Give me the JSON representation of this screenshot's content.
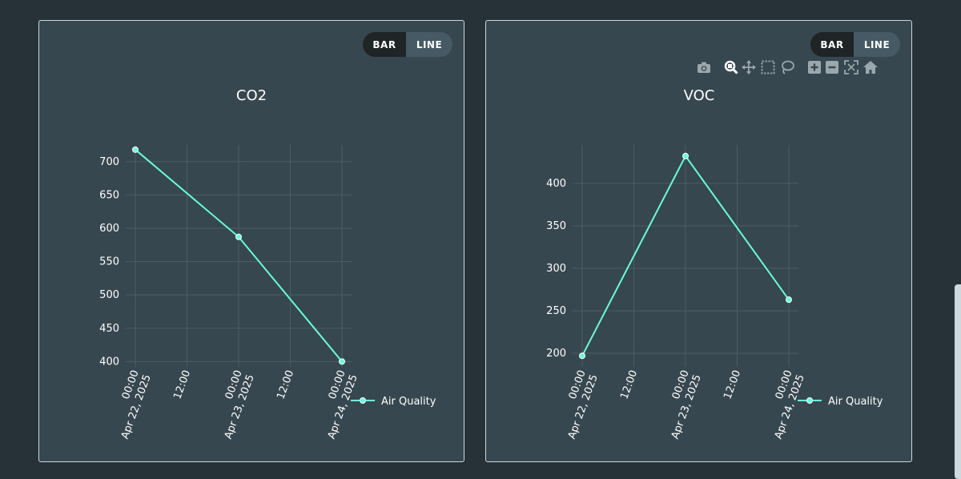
{
  "colors": {
    "page_bg": "#263238",
    "panel_bg": "#37474f",
    "panel_border": "#cfd8dc",
    "series": "#64ffda",
    "grid": "#4c5c63",
    "text": "#ffffff",
    "toggle_off": "#1f2426",
    "toggle_on": "#455a64"
  },
  "toggle": {
    "bar_label": "BAR",
    "line_label": "LINE",
    "active": "line"
  },
  "modebar_icons": [
    "camera-icon",
    "zoom-icon",
    "pan-icon",
    "box-select-icon",
    "lasso-select-icon",
    "zoom-in-icon",
    "zoom-out-icon",
    "autoscale-icon",
    "reset-axes-icon"
  ],
  "chart_data": [
    {
      "type": "line",
      "title": "CO2",
      "series": [
        {
          "name": "Air Quality",
          "values": [
            718,
            587,
            400
          ]
        }
      ],
      "x": [
        "Apr 22, 2025 00:00",
        "Apr 23, 2025 00:00",
        "Apr 24, 2025 00:00"
      ],
      "x_ticks": [
        {
          "time": "00:00",
          "date": "Apr 22, 2025"
        },
        {
          "time": "12:00",
          "date": ""
        },
        {
          "time": "00:00",
          "date": "Apr 23, 2025"
        },
        {
          "time": "12:00",
          "date": ""
        },
        {
          "time": "00:00",
          "date": "Apr 24, 2025"
        }
      ],
      "y_ticks": [
        400,
        450,
        500,
        550,
        600,
        650,
        700
      ],
      "ylim": [
        392,
        725
      ],
      "legend": "right"
    },
    {
      "type": "line",
      "title": "VOC",
      "series": [
        {
          "name": "Air Quality",
          "values": [
            197,
            432,
            263
          ]
        }
      ],
      "x": [
        "Apr 22, 2025 00:00",
        "Apr 23, 2025 00:00",
        "Apr 24, 2025 00:00"
      ],
      "x_ticks": [
        {
          "time": "00:00",
          "date": "Apr 22, 2025"
        },
        {
          "time": "12:00",
          "date": ""
        },
        {
          "time": "00:00",
          "date": "Apr 23, 2025"
        },
        {
          "time": "12:00",
          "date": ""
        },
        {
          "time": "00:00",
          "date": "Apr 24, 2025"
        }
      ],
      "y_ticks": [
        200,
        250,
        300,
        350,
        400
      ],
      "ylim": [
        184,
        445
      ],
      "legend": "right"
    }
  ]
}
